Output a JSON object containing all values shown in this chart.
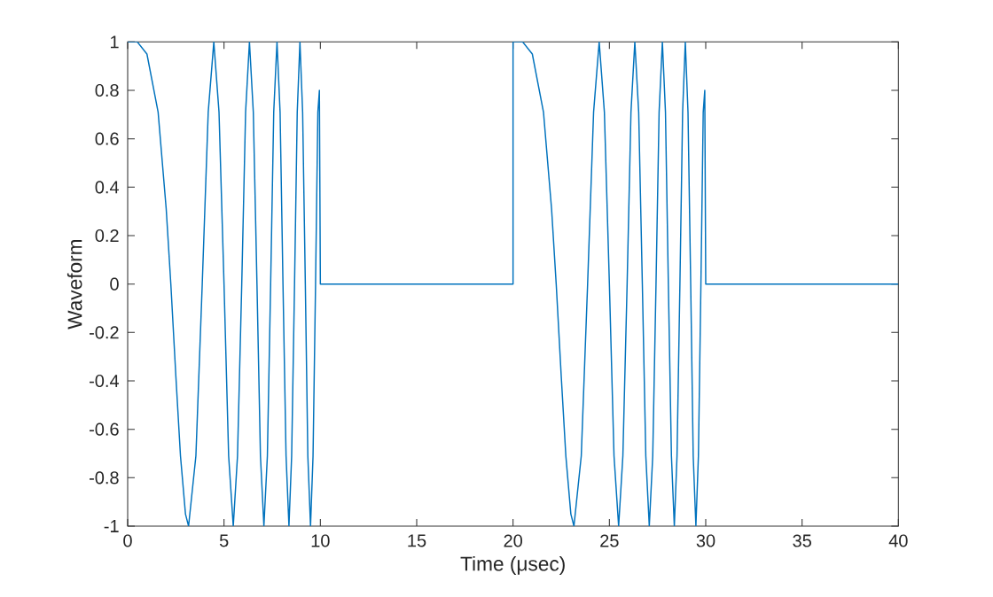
{
  "chart_data": {
    "type": "line",
    "xlabel": "Time  (μsec)",
    "ylabel": "Waveform",
    "xlim": [
      0,
      40
    ],
    "xticks": [
      0,
      5,
      10,
      15,
      20,
      25,
      30,
      35,
      40
    ],
    "ylim": [
      -1,
      1
    ],
    "yticks": [
      -1,
      -0.8,
      -0.6,
      -0.4,
      -0.2,
      0,
      0.2,
      0.4,
      0.6,
      0.8,
      1
    ],
    "grid": false,
    "marker": "none",
    "line_style": "solid",
    "series": [
      {
        "color": "#0072bd",
        "x": [
          0,
          0.5,
          1,
          1.58,
          2,
          2.24,
          2.5,
          2.74,
          3,
          3.16,
          3.54,
          3.87,
          4.18,
          4.47,
          4.74,
          5,
          5.24,
          5.48,
          5.7,
          5.92,
          6.12,
          6.32,
          6.52,
          6.71,
          6.89,
          7.07,
          7.25,
          7.42,
          7.58,
          7.75,
          7.91,
          8.06,
          8.22,
          8.37,
          8.51,
          8.66,
          8.8,
          8.94,
          9.08,
          9.22,
          9.35,
          9.49,
          9.62,
          9.75,
          9.87,
          9.95,
          10,
          20,
          20,
          20.5,
          21,
          21.58,
          22,
          22.24,
          22.5,
          22.74,
          23,
          23.16,
          23.54,
          23.87,
          24.18,
          24.47,
          24.74,
          25,
          25.24,
          25.48,
          25.7,
          25.92,
          26.12,
          26.32,
          26.52,
          26.71,
          26.89,
          27.07,
          27.25,
          27.42,
          27.58,
          27.75,
          27.91,
          28.06,
          28.22,
          28.37,
          28.51,
          28.66,
          28.8,
          28.94,
          29.08,
          29.22,
          29.35,
          29.49,
          29.62,
          29.75,
          29.87,
          29.95,
          30,
          40
        ],
        "values": [
          1,
          1,
          0.95,
          0.71,
          0.31,
          0,
          -0.38,
          -0.71,
          -0.95,
          -1,
          -0.71,
          0,
          0.71,
          1,
          0.71,
          0,
          -0.71,
          -1,
          -0.71,
          0,
          0.71,
          1,
          0.71,
          0,
          -0.71,
          -1,
          -0.71,
          0,
          0.71,
          1,
          0.71,
          0,
          -0.71,
          -1,
          -0.71,
          0,
          0.71,
          1,
          0.71,
          0,
          -0.71,
          -1,
          -0.71,
          0,
          0.71,
          0.8,
          0,
          0,
          1,
          1,
          0.95,
          0.71,
          0.31,
          0,
          -0.38,
          -0.71,
          -0.95,
          -1,
          -0.71,
          0,
          0.71,
          1,
          0.71,
          0,
          -0.71,
          -1,
          -0.71,
          0,
          0.71,
          1,
          0.71,
          0,
          -0.71,
          -1,
          -0.71,
          0,
          0.71,
          1,
          0.71,
          0,
          -0.71,
          -1,
          -0.71,
          0,
          0.71,
          1,
          0.71,
          0,
          -0.71,
          -1,
          -0.71,
          0,
          0.71,
          0.8,
          0,
          0
        ]
      }
    ]
  }
}
